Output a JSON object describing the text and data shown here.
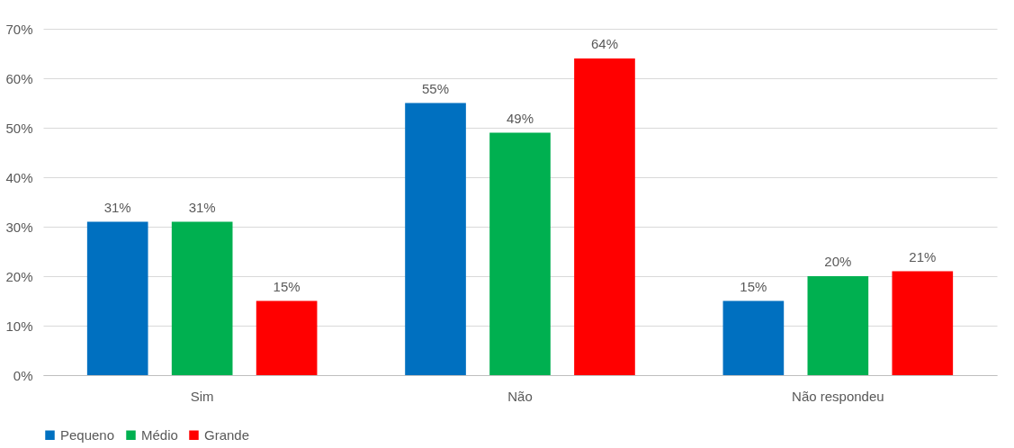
{
  "chart_data": {
    "type": "bar",
    "categories": [
      "Sim",
      "Não",
      "Não respondeu"
    ],
    "series": [
      {
        "name": "Pequeno",
        "color": "#0070c0",
        "values": [
          31,
          55,
          15
        ],
        "value_labels": [
          "31%",
          "55%",
          "15%"
        ]
      },
      {
        "name": "Médio",
        "color": "#00b050",
        "values": [
          31,
          49,
          20
        ],
        "value_labels": [
          "31%",
          "49%",
          "20%"
        ]
      },
      {
        "name": "Grande",
        "color": "#ff0000",
        "values": [
          15,
          64,
          21
        ],
        "value_labels": [
          "15%",
          "64%",
          "21%"
        ]
      }
    ],
    "ylim": [
      0,
      70
    ],
    "yticks": [
      {
        "value": 0,
        "label": "0%"
      },
      {
        "value": 10,
        "label": "10%"
      },
      {
        "value": 20,
        "label": "20%"
      },
      {
        "value": 30,
        "label": "30%"
      },
      {
        "value": 40,
        "label": "40%"
      },
      {
        "value": 50,
        "label": "50%"
      },
      {
        "value": 60,
        "label": "60%"
      },
      {
        "value": 70,
        "label": "70%"
      }
    ],
    "grid": "y",
    "legend": "bottom"
  }
}
